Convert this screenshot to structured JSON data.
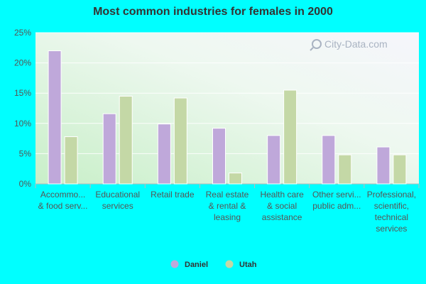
{
  "chart_data": {
    "type": "bar",
    "title": "Most common industries for females in 2000",
    "categories": [
      [
        "Accommo...",
        "& food serv..."
      ],
      [
        "Educational",
        "services"
      ],
      [
        "Retail trade"
      ],
      [
        "Real estate",
        "& rental &",
        "leasing"
      ],
      [
        "Health care",
        "& social",
        "assistance"
      ],
      [
        "Other servi...",
        "public adm..."
      ],
      [
        "Professional,",
        "scientific,",
        "technical",
        "services"
      ]
    ],
    "series": [
      {
        "name": "Daniel",
        "color": "#bfa8da",
        "values": [
          22.0,
          11.6,
          9.9,
          9.2,
          8.0,
          8.0,
          6.1
        ]
      },
      {
        "name": "Utah",
        "color": "#c4d8a6",
        "values": [
          7.8,
          14.5,
          14.2,
          1.8,
          15.5,
          4.8,
          4.8
        ]
      }
    ],
    "yticks": [
      "0%",
      "5%",
      "10%",
      "15%",
      "20%",
      "25%"
    ],
    "ylim": [
      0,
      25
    ],
    "grid": true,
    "legend": "bottom-center"
  },
  "watermark": "City-Data.com"
}
